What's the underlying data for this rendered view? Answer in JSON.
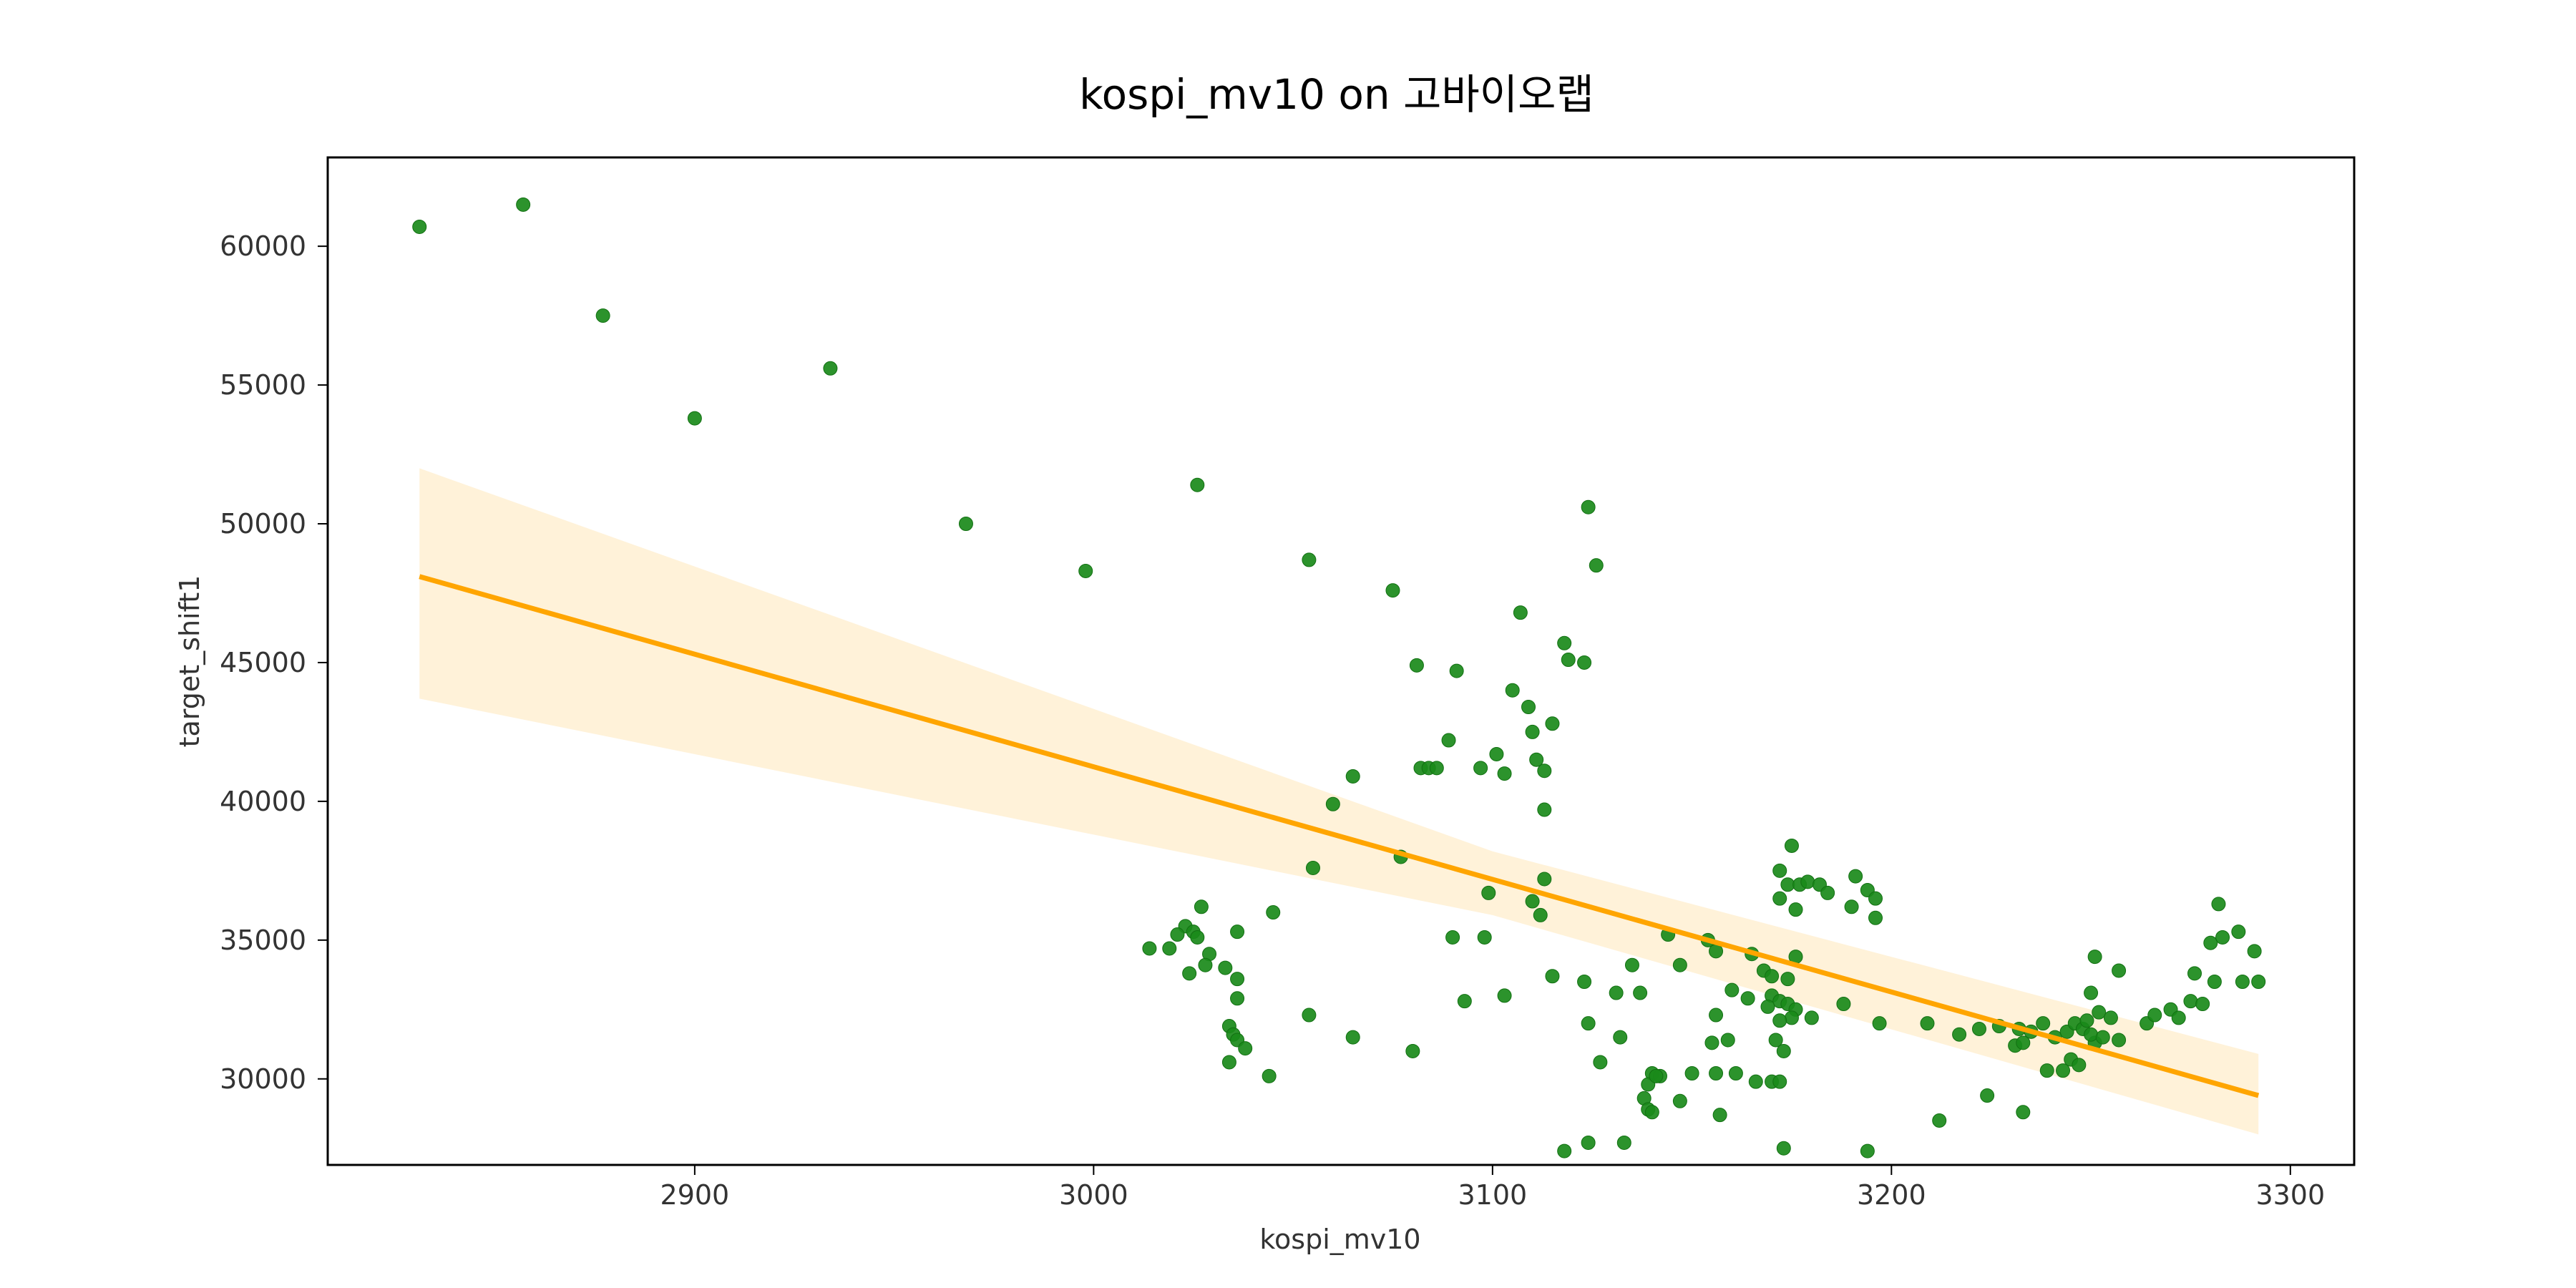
{
  "chart_data": {
    "type": "scatter",
    "title": "kospi_mv10 on 고바이오랩",
    "xlabel": "kospi_mv10",
    "ylabel": "target_shift1",
    "xlim": [
      2808,
      3316
    ],
    "ylim": [
      26900,
      63200
    ],
    "xticks": [
      2900,
      3000,
      3100,
      3200,
      3300
    ],
    "yticks": [
      30000,
      35000,
      40000,
      45000,
      50000,
      55000,
      60000
    ],
    "grid": false,
    "legend": "none",
    "colors": {
      "points": "#1a8a1a",
      "regression_line": "#ffa500",
      "confidence_band": "#ffa500"
    },
    "series": [
      {
        "kind": "points",
        "points": [
          [
            2831,
            60700
          ],
          [
            2857,
            61500
          ],
          [
            2877,
            57500
          ],
          [
            2900,
            53800
          ],
          [
            2934,
            55600
          ],
          [
            2968,
            50000
          ],
          [
            2998,
            48300
          ],
          [
            3026,
            51400
          ],
          [
            3054,
            48700
          ],
          [
            3075,
            47600
          ],
          [
            3081,
            44900
          ],
          [
            3091,
            44700
          ],
          [
            3124,
            50600
          ],
          [
            3126,
            48500
          ],
          [
            3107,
            46800
          ],
          [
            3118,
            45700
          ],
          [
            3119,
            45100
          ],
          [
            3123,
            45000
          ],
          [
            3105,
            44000
          ],
          [
            3109,
            43400
          ],
          [
            3115,
            42800
          ],
          [
            3110,
            42500
          ],
          [
            3089,
            42200
          ],
          [
            3101,
            41700
          ],
          [
            3111,
            41500
          ],
          [
            3082,
            41200
          ],
          [
            3084,
            41200
          ],
          [
            3086,
            41200
          ],
          [
            3097,
            41200
          ],
          [
            3103,
            41000
          ],
          [
            3113,
            41100
          ],
          [
            3065,
            40900
          ],
          [
            3060,
            39900
          ],
          [
            3113,
            39700
          ],
          [
            3077,
            38000
          ],
          [
            3055,
            37600
          ],
          [
            3113,
            37200
          ],
          [
            3099,
            36700
          ],
          [
            3110,
            36400
          ],
          [
            3112,
            35900
          ],
          [
            3045,
            36000
          ],
          [
            3027,
            36200
          ],
          [
            3023,
            35500
          ],
          [
            3025,
            35300
          ],
          [
            3021,
            35200
          ],
          [
            3026,
            35100
          ],
          [
            3036,
            35300
          ],
          [
            3014,
            34700
          ],
          [
            3019,
            34700
          ],
          [
            3029,
            34500
          ],
          [
            3028,
            34100
          ],
          [
            3024,
            33800
          ],
          [
            3033,
            34000
          ],
          [
            3036,
            33600
          ],
          [
            3036,
            32900
          ],
          [
            3034,
            31900
          ],
          [
            3035,
            31600
          ],
          [
            3036,
            31400
          ],
          [
            3038,
            31100
          ],
          [
            3034,
            30600
          ],
          [
            3044,
            30100
          ],
          [
            3054,
            32300
          ],
          [
            3065,
            31500
          ],
          [
            3080,
            31000
          ],
          [
            3090,
            35100
          ],
          [
            3098,
            35100
          ],
          [
            3093,
            32800
          ],
          [
            3103,
            33000
          ],
          [
            3115,
            33700
          ],
          [
            3123,
            33500
          ],
          [
            3124,
            32000
          ],
          [
            3127,
            30600
          ],
          [
            3131,
            33100
          ],
          [
            3132,
            31500
          ],
          [
            3135,
            34100
          ],
          [
            3137,
            33100
          ],
          [
            3144,
            35200
          ],
          [
            3147,
            34100
          ],
          [
            3140,
            30200
          ],
          [
            3142,
            30100
          ],
          [
            3147,
            29200
          ],
          [
            3138,
            29300
          ],
          [
            3139,
            28900
          ],
          [
            3140,
            28800
          ],
          [
            3139,
            29800
          ],
          [
            3141,
            30100
          ],
          [
            3150,
            30200
          ],
          [
            3133,
            27700
          ],
          [
            3118,
            27400
          ],
          [
            3124,
            27700
          ],
          [
            3154,
            35000
          ],
          [
            3156,
            34600
          ],
          [
            3165,
            34500
          ],
          [
            3160,
            33200
          ],
          [
            3164,
            32900
          ],
          [
            3156,
            32300
          ],
          [
            3155,
            31300
          ],
          [
            3159,
            31400
          ],
          [
            3156,
            30200
          ],
          [
            3161,
            30200
          ],
          [
            3166,
            29900
          ],
          [
            3170,
            29900
          ],
          [
            3172,
            29900
          ],
          [
            3157,
            28700
          ],
          [
            3173,
            27500
          ],
          [
            3168,
            33900
          ],
          [
            3170,
            33000
          ],
          [
            3172,
            32800
          ],
          [
            3174,
            32700
          ],
          [
            3176,
            32500
          ],
          [
            3169,
            32600
          ],
          [
            3175,
            32200
          ],
          [
            3172,
            32100
          ],
          [
            3171,
            31400
          ],
          [
            3173,
            31000
          ],
          [
            3170,
            33700
          ],
          [
            3174,
            33600
          ],
          [
            3176,
            34400
          ],
          [
            3175,
            38400
          ],
          [
            3172,
            37500
          ],
          [
            3174,
            37000
          ],
          [
            3177,
            37000
          ],
          [
            3179,
            37100
          ],
          [
            3172,
            36500
          ],
          [
            3176,
            36100
          ],
          [
            3182,
            37000
          ],
          [
            3184,
            36700
          ],
          [
            3190,
            36200
          ],
          [
            3191,
            37300
          ],
          [
            3194,
            36800
          ],
          [
            3196,
            36500
          ],
          [
            3196,
            35800
          ],
          [
            3180,
            32200
          ],
          [
            3188,
            32700
          ],
          [
            3197,
            32000
          ],
          [
            3194,
            27400
          ],
          [
            3209,
            32000
          ],
          [
            3217,
            31600
          ],
          [
            3222,
            31800
          ],
          [
            3227,
            31900
          ],
          [
            3212,
            28500
          ],
          [
            3224,
            29400
          ],
          [
            3231,
            31200
          ],
          [
            3232,
            31800
          ],
          [
            3233,
            31300
          ],
          [
            3235,
            31700
          ],
          [
            3233,
            28800
          ],
          [
            3238,
            32000
          ],
          [
            3241,
            31500
          ],
          [
            3244,
            31700
          ],
          [
            3246,
            32000
          ],
          [
            3248,
            31800
          ],
          [
            3249,
            32100
          ],
          [
            3251,
            31300
          ],
          [
            3250,
            31600
          ],
          [
            3253,
            31500
          ],
          [
            3245,
            30700
          ],
          [
            3247,
            30500
          ],
          [
            3243,
            30300
          ],
          [
            3239,
            30300
          ],
          [
            3252,
            32400
          ],
          [
            3255,
            32200
          ],
          [
            3250,
            33100
          ],
          [
            3251,
            34400
          ],
          [
            3257,
            33900
          ],
          [
            3257,
            31400
          ],
          [
            3264,
            32000
          ],
          [
            3266,
            32300
          ],
          [
            3270,
            32500
          ],
          [
            3272,
            32200
          ],
          [
            3275,
            32800
          ],
          [
            3278,
            32700
          ],
          [
            3276,
            33800
          ],
          [
            3281,
            33500
          ],
          [
            3280,
            34900
          ],
          [
            3283,
            35100
          ],
          [
            3282,
            36300
          ],
          [
            3287,
            35300
          ],
          [
            3291,
            34600
          ],
          [
            3288,
            33500
          ],
          [
            3292,
            33500
          ]
        ]
      },
      {
        "kind": "regression",
        "line": [
          [
            2831,
            48100
          ],
          [
            3292,
            29400
          ]
        ],
        "ci_upper": [
          [
            2831,
            52000
          ],
          [
            3100,
            38200
          ],
          [
            3292,
            30900
          ]
        ],
        "ci_lower": [
          [
            2831,
            43700
          ],
          [
            3100,
            35900
          ],
          [
            3292,
            28000
          ]
        ]
      }
    ]
  }
}
